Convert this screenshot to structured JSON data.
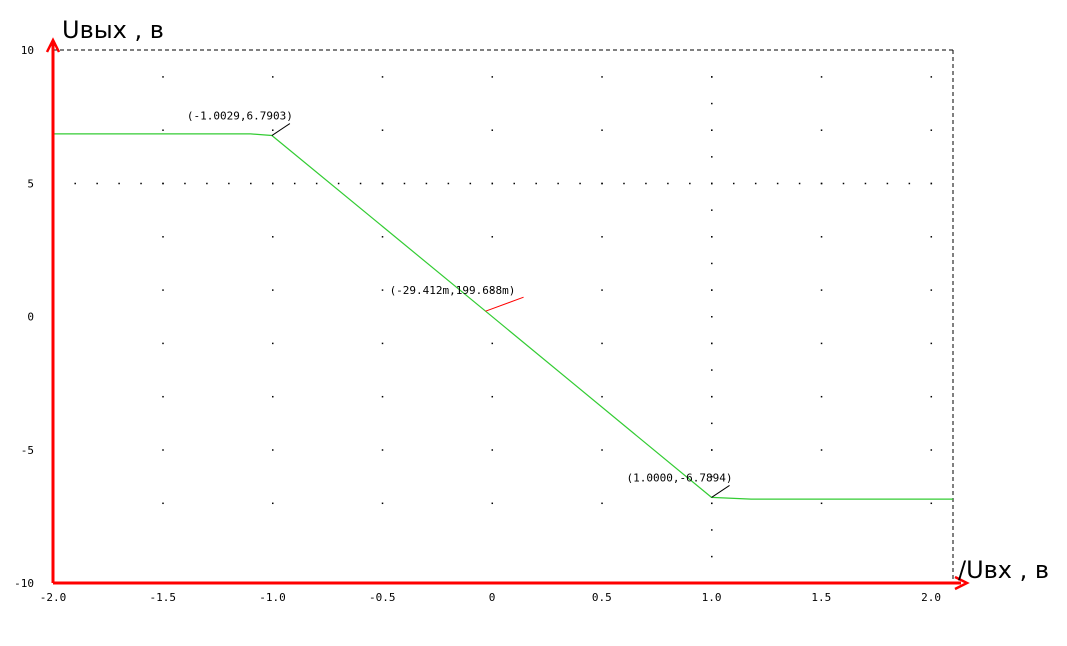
{
  "chart_data": {
    "type": "line",
    "title": "",
    "xlabel": "/Uвх , в",
    "ylabel": "Uвых , в",
    "xlim": [
      -2.0,
      2.1
    ],
    "ylim": [
      -10,
      10
    ],
    "grid": "dotted",
    "x_ticks": [
      {
        "value": -2.0,
        "label": "-2.0"
      },
      {
        "value": -1.5,
        "label": "-1.5"
      },
      {
        "value": -1.0,
        "label": "-1.0"
      },
      {
        "value": -0.5,
        "label": "-0.5"
      },
      {
        "value": 0.0,
        "label": "0"
      },
      {
        "value": 0.5,
        "label": "0.5"
      },
      {
        "value": 1.0,
        "label": "1.0"
      },
      {
        "value": 1.5,
        "label": "1.5"
      },
      {
        "value": 2.0,
        "label": "2.0"
      }
    ],
    "y_ticks": [
      {
        "value": 10,
        "label": "10"
      },
      {
        "value": 5,
        "label": "5"
      },
      {
        "value": 0,
        "label": "0"
      },
      {
        "value": -5,
        "label": "-5"
      },
      {
        "value": -10,
        "label": "-10"
      }
    ],
    "series": [
      {
        "color": "#33cc33",
        "x": [
          -2.0,
          -1.1,
          -1.0029,
          -0.029412,
          1.0,
          1.18,
          2.1
        ],
        "y": [
          6.85,
          6.85,
          6.7903,
          0.199688,
          -6.7894,
          -6.85,
          -6.85
        ]
      }
    ],
    "annotations": [
      {
        "text": "(-1.0029,6.7903)",
        "x": -1.0029,
        "y": 6.7903,
        "leader_color": "#000000"
      },
      {
        "text": "(-29.412m,199.688m)",
        "x": -0.029412,
        "y": 0.199688,
        "leader_color": "#ff0000"
      },
      {
        "text": "(1.0000,-6.7894)",
        "x": 1.0,
        "y": -6.7894,
        "leader_color": "#000000"
      }
    ],
    "colors": {
      "axis": "#ff0000",
      "series": "#33cc33",
      "frame": "#000000"
    }
  }
}
